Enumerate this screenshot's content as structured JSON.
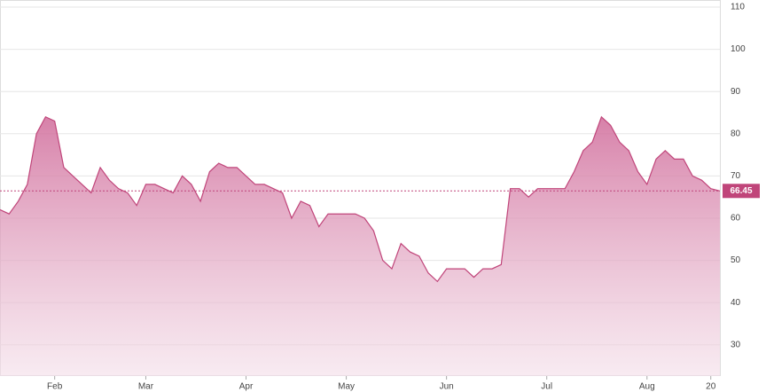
{
  "chart_data": {
    "type": "area",
    "categories": [
      null,
      null,
      null,
      null,
      null,
      null,
      "Feb",
      null,
      null,
      null,
      null,
      null,
      null,
      null,
      null,
      null,
      "Mar",
      null,
      null,
      null,
      null,
      null,
      null,
      null,
      null,
      null,
      null,
      "Apr",
      null,
      null,
      null,
      null,
      null,
      null,
      null,
      null,
      null,
      null,
      "May",
      null,
      null,
      null,
      null,
      null,
      null,
      null,
      null,
      null,
      null,
      "Jun",
      null,
      null,
      null,
      null,
      null,
      null,
      null,
      null,
      null,
      null,
      "Jul",
      null,
      null,
      null,
      null,
      null,
      null,
      null,
      null,
      null,
      null,
      "Aug",
      null,
      null,
      null,
      null,
      null,
      null,
      "20",
      null
    ],
    "values": [
      62,
      61,
      64,
      68,
      80,
      84,
      83,
      72,
      70,
      68,
      66,
      72,
      69,
      67,
      66,
      63,
      68,
      68,
      67,
      66,
      70,
      68,
      64,
      71,
      73,
      72,
      72,
      70,
      68,
      68,
      67,
      66,
      60,
      64,
      63,
      58,
      61,
      61,
      61,
      61,
      60,
      57,
      50,
      48,
      54,
      52,
      51,
      47,
      45,
      48,
      48,
      48,
      46,
      48,
      48,
      49,
      67,
      67,
      65,
      67,
      67,
      67,
      67,
      71,
      76,
      78,
      84,
      82,
      78,
      76,
      71,
      68,
      74,
      76,
      74,
      74,
      70,
      69,
      67,
      66.45
    ],
    "color": "#c0457a",
    "last_value": 66.45,
    "ylim": [
      22.6,
      110
    ],
    "yticks": [
      30,
      40,
      50,
      60,
      70,
      80,
      90,
      100,
      110
    ],
    "grid": true
  }
}
